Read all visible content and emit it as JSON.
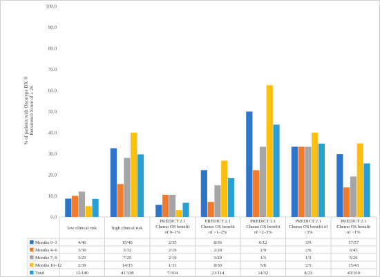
{
  "chart_data": {
    "type": "bar",
    "title": "",
    "xlabel": "",
    "ylabel_lines": [
      "% of patients with Oncotype DX ®",
      "Recurrence Score of ≥ 26"
    ],
    "ylim": [
      0,
      100
    ],
    "yticks": [
      "0.0",
      "10.0",
      "20.0",
      "30.0",
      "40.0",
      "50.0",
      "60.0",
      "70.0",
      "80.0",
      "90.0",
      "100.0"
    ],
    "grid": false,
    "legend_placement": "data-table-left",
    "categories": [
      [
        "low clinical risk"
      ],
      [
        "high clinical risk"
      ],
      [
        "PREDICT 2.1",
        "Chemo OS benefit",
        "of 0–1%"
      ],
      [
        "PREDICT 2.1",
        "Chemo OS benefit",
        "of >1–2%"
      ],
      [
        "PREDICT 2.1",
        "Chemo OS benefit",
        "of >2–3%"
      ],
      [
        "PREDICT 2.1",
        "Chemo OS benefit of",
        ">3%"
      ],
      [
        "PREDICT 2.1",
        "Chemo OS benefit",
        "of >1%"
      ]
    ],
    "series": [
      {
        "name": "Months 0–3",
        "color": "#2e75c9",
        "values": [
          8.7,
          32.6,
          5.7,
          22.2,
          50.0,
          33.3,
          29.8
        ],
        "labels": [
          "4/46",
          "15/46",
          "2/35",
          "8/36",
          "6/12",
          "3/9",
          "17/57"
        ]
      },
      {
        "name": "Months 4–6",
        "color": "#f07b2e",
        "values": [
          10.0,
          15.6,
          10.5,
          7.1,
          22.2,
          33.3,
          14.0
        ],
        "labels": [
          "3/30",
          "5/32",
          "2/19",
          "2/28",
          "2/9",
          "2/6",
          "6/43"
        ]
      },
      {
        "name": "Months 7–9",
        "color": "#a5a5a5",
        "values": [
          12.0,
          28.0,
          10.5,
          15.0,
          33.3,
          33.3,
          19.2
        ],
        "labels": [
          "3/25",
          "7/25",
          "2/19",
          "3/20",
          "1/3",
          "1/3",
          "5/26"
        ]
      },
      {
        "name": "Months 10–12",
        "color": "#fdbf0f",
        "values": [
          5.1,
          40.0,
          3.2,
          26.7,
          62.5,
          40.0,
          34.9
        ],
        "labels": [
          "2/39",
          "14/35",
          "1/31",
          "8/30",
          "5/8",
          "2/5",
          "15/43"
        ]
      },
      {
        "name": "Total",
        "color": "#2a9fd6",
        "values": [
          8.6,
          29.7,
          6.7,
          18.4,
          43.8,
          34.8,
          25.4
        ],
        "labels": [
          "12/140",
          "41/138",
          "7/104",
          "21/114",
          "14/32",
          "8/23",
          "43/169"
        ]
      }
    ]
  }
}
